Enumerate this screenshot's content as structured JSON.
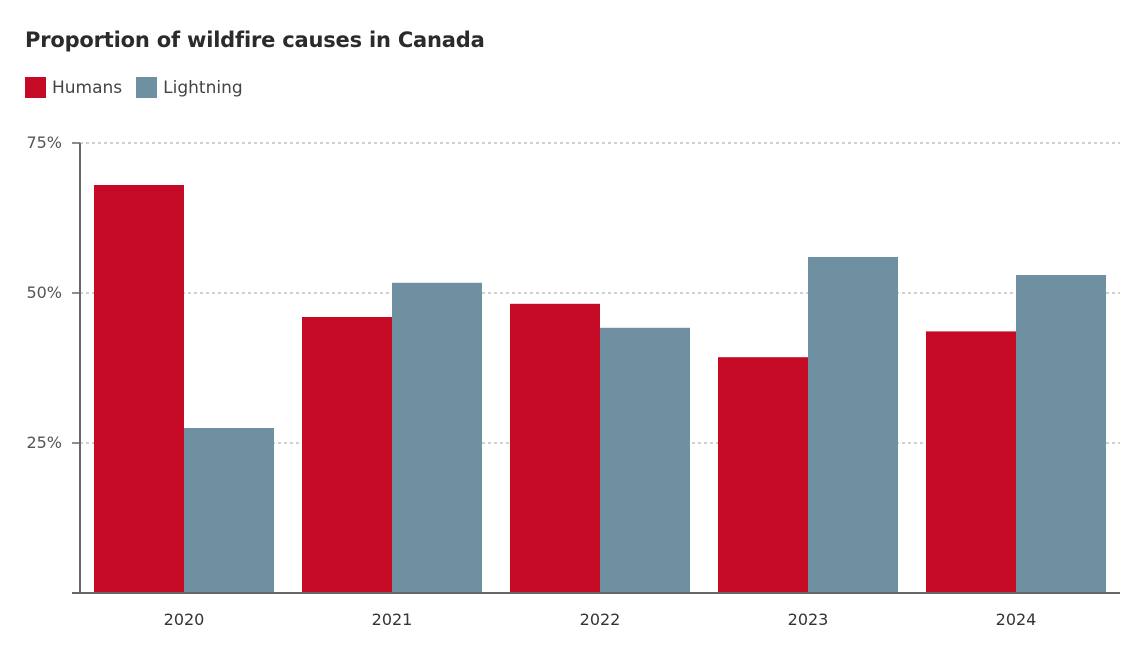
{
  "chart_data": {
    "type": "bar",
    "title": "Proportion of wildfire causes in Canada",
    "categories": [
      "2020",
      "2021",
      "2022",
      "2023",
      "2024"
    ],
    "series": [
      {
        "name": "Humans",
        "color": "#c40a24",
        "values": [
          68,
          46,
          48.2,
          39.3,
          43.6
        ]
      },
      {
        "name": "Lightning",
        "color": "#6e90a1",
        "values": [
          27.5,
          51.7,
          44.2,
          56,
          53
        ]
      }
    ],
    "y_ticks": [
      {
        "value": 25,
        "label": "25%"
      },
      {
        "value": 50,
        "label": "50%"
      },
      {
        "value": 75,
        "label": "75%"
      }
    ],
    "ylim": [
      0,
      75
    ],
    "grid": true,
    "legend_position": "top-left"
  }
}
